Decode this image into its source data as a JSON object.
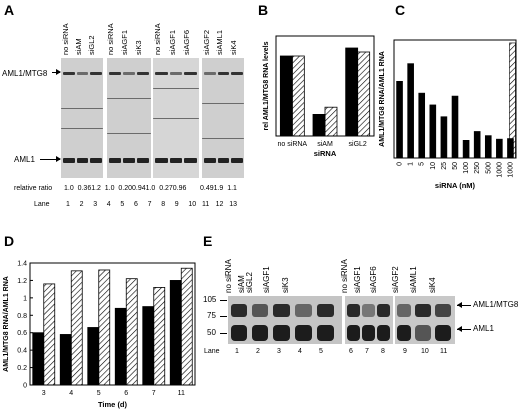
{
  "panels": {
    "A": {
      "label": "A",
      "lane_headers": [
        "no siRNA",
        "siAM",
        "siGL2",
        "no siRNA",
        "siAGF1",
        "siK3",
        "no siRNA",
        "siAGF1",
        "siAGF6",
        "siAGF2",
        "siAML1",
        "siK4"
      ],
      "band_labels": [
        "AML1/MTG8",
        "AML1"
      ],
      "ratio_label": "relative ratio",
      "ratios": [
        "1.0",
        "0.36",
        "1.2",
        "1.0",
        "0.20",
        "0.94",
        "1.0",
        "0.27",
        "0.96",
        "0.49",
        "1.9",
        "1.1"
      ],
      "ratio_positions": [
        1,
        2,
        3,
        4,
        5,
        6,
        7,
        8,
        9,
        11,
        12,
        13
      ],
      "lane_label": "Lane",
      "lanes": [
        "1",
        "2",
        "3",
        "4",
        "5",
        "6",
        "7",
        "8",
        "9",
        "10",
        "11",
        "12",
        "13"
      ]
    },
    "B": {
      "label": "B"
    },
    "C": {
      "label": "C"
    },
    "D": {
      "label": "D"
    },
    "E": {
      "label": "E",
      "lane_headers": [
        "no siRNA",
        "siAM",
        "siGL2",
        "siAGF1",
        "siK3",
        "no siRNA",
        "siAGF1",
        "siAGF6",
        "siAGF2",
        "siAML1",
        "siK4"
      ],
      "markers": [
        "105",
        "75",
        "50"
      ],
      "band_labels": [
        "AML1/MTG8",
        "AML1"
      ],
      "lane_label": "Lane",
      "lanes": [
        "1",
        "2",
        "3",
        "4",
        "5",
        "6",
        "7",
        "8",
        "9",
        "10",
        "11"
      ]
    }
  },
  "chart_data": [
    {
      "panel": "B",
      "type": "bar",
      "categories": [
        "no siRNA",
        "siAM",
        "siGL2"
      ],
      "series": [
        {
          "style": "solid",
          "values": [
            1.0,
            0.27,
            1.1
          ]
        },
        {
          "style": "hatched",
          "values": [
            1.0,
            0.36,
            1.05
          ]
        }
      ],
      "xlabel": "siRNA",
      "ylabel": "rel AML1/MTG8 RNA levels",
      "ylim": [
        0,
        1.25
      ],
      "ylim_note": "no tick labels shown"
    },
    {
      "panel": "C",
      "type": "bar",
      "categories": [
        "0",
        "1",
        "5",
        "10",
        "25",
        "50",
        "100",
        "250",
        "500",
        "1000",
        "1000"
      ],
      "series": [
        {
          "style": "solid",
          "values": [
            1.3,
            1.6,
            1.1,
            0.9,
            0.7,
            1.05,
            0.3,
            0.45,
            0.38,
            0.32,
            0.33
          ]
        },
        {
          "style": "hatched",
          "values": [
            null,
            null,
            null,
            null,
            null,
            null,
            null,
            null,
            null,
            null,
            1.95
          ]
        }
      ],
      "xlabel": "siRNA (nM)",
      "ylabel": "AML1/MTG8 RNA/AML1 RNA",
      "ylim": [
        0,
        2.0
      ]
    },
    {
      "panel": "D",
      "type": "bar",
      "categories": [
        "3",
        "4",
        "5",
        "6",
        "7",
        "11"
      ],
      "series": [
        {
          "style": "solid",
          "values": [
            0.6,
            0.58,
            0.66,
            0.88,
            0.9,
            1.2
          ]
        },
        {
          "style": "hatched",
          "values": [
            1.16,
            1.31,
            1.32,
            1.22,
            1.12,
            1.34
          ]
        }
      ],
      "xlabel": "Time (d)",
      "ylabel": "AML1/MTG8 RNA/AML1 RNA",
      "yticks": [
        "0",
        "0.2",
        "0.4",
        "0.6",
        "0.8",
        "1",
        "1.2",
        "1.4"
      ],
      "ylim": [
        0,
        1.4
      ]
    }
  ]
}
